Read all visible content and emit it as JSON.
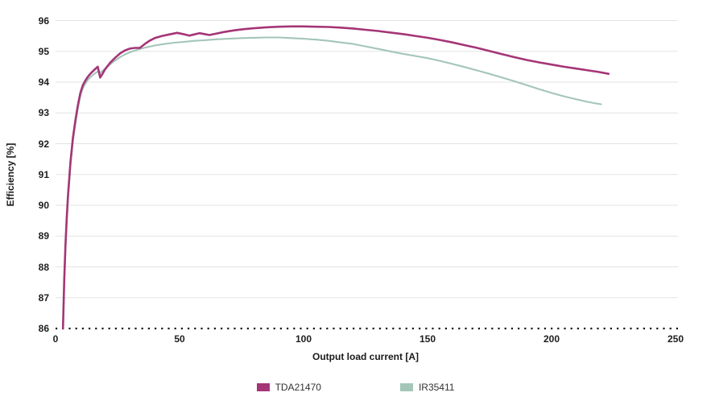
{
  "chart_data": {
    "type": "line",
    "title": "",
    "xlabel": "Output load current [A]",
    "ylabel": "Efficiency [%]",
    "xlim": [
      0,
      250
    ],
    "ylim": [
      86,
      96
    ],
    "xticks": [
      0,
      50,
      100,
      150,
      200,
      250
    ],
    "yticks": [
      86,
      87,
      88,
      89,
      90,
      91,
      92,
      93,
      94,
      95,
      96
    ],
    "grid": "horizontal-light-gray",
    "baseline_style": "dotted-black-at-86",
    "legend_position": "bottom-center",
    "series": [
      {
        "name": "TDA21470",
        "color": "#A53577",
        "points": [
          [
            3,
            86.0
          ],
          [
            3.5,
            87.6
          ],
          [
            4,
            88.7
          ],
          [
            4.5,
            89.6
          ],
          [
            5,
            90.3
          ],
          [
            6,
            91.4
          ],
          [
            7,
            92.2
          ],
          [
            8,
            92.75
          ],
          [
            9,
            93.25
          ],
          [
            10,
            93.65
          ],
          [
            11,
            93.9
          ],
          [
            12,
            94.05
          ],
          [
            13,
            94.17
          ],
          [
            14,
            94.27
          ],
          [
            15,
            94.35
          ],
          [
            16,
            94.43
          ],
          [
            17,
            94.5
          ],
          [
            18,
            94.15
          ],
          [
            19,
            94.28
          ],
          [
            20,
            94.42
          ],
          [
            22,
            94.63
          ],
          [
            24,
            94.79
          ],
          [
            26,
            94.93
          ],
          [
            28,
            95.03
          ],
          [
            30,
            95.09
          ],
          [
            32,
            95.11
          ],
          [
            34,
            95.11
          ],
          [
            36,
            95.24
          ],
          [
            38,
            95.35
          ],
          [
            40,
            95.43
          ],
          [
            43,
            95.5
          ],
          [
            46,
            95.55
          ],
          [
            49,
            95.6
          ],
          [
            52,
            95.55
          ],
          [
            54,
            95.51
          ],
          [
            56,
            95.55
          ],
          [
            58,
            95.59
          ],
          [
            60,
            95.56
          ],
          [
            62,
            95.53
          ],
          [
            65,
            95.58
          ],
          [
            68,
            95.63
          ],
          [
            72,
            95.68
          ],
          [
            76,
            95.72
          ],
          [
            80,
            95.75
          ],
          [
            85,
            95.78
          ],
          [
            90,
            95.8
          ],
          [
            95,
            95.81
          ],
          [
            100,
            95.81
          ],
          [
            105,
            95.8
          ],
          [
            110,
            95.79
          ],
          [
            115,
            95.77
          ],
          [
            120,
            95.74
          ],
          [
            125,
            95.7
          ],
          [
            130,
            95.66
          ],
          [
            135,
            95.61
          ],
          [
            140,
            95.56
          ],
          [
            145,
            95.5
          ],
          [
            150,
            95.44
          ],
          [
            155,
            95.37
          ],
          [
            160,
            95.29
          ],
          [
            165,
            95.2
          ],
          [
            170,
            95.11
          ],
          [
            175,
            95.01
          ],
          [
            180,
            94.91
          ],
          [
            185,
            94.81
          ],
          [
            190,
            94.72
          ],
          [
            195,
            94.64
          ],
          [
            200,
            94.57
          ],
          [
            205,
            94.5
          ],
          [
            210,
            94.44
          ],
          [
            215,
            94.38
          ],
          [
            219,
            94.33
          ],
          [
            223,
            94.27
          ]
        ]
      },
      {
        "name": "IR35411",
        "color": "#A3C6B8",
        "points": [
          [
            3,
            86.0
          ],
          [
            3.5,
            87.5
          ],
          [
            4,
            88.6
          ],
          [
            4.5,
            89.5
          ],
          [
            5,
            90.2
          ],
          [
            6,
            91.3
          ],
          [
            7,
            92.1
          ],
          [
            8,
            92.65
          ],
          [
            9,
            93.15
          ],
          [
            10,
            93.55
          ],
          [
            11,
            93.8
          ],
          [
            12,
            93.95
          ],
          [
            13,
            94.07
          ],
          [
            14,
            94.16
          ],
          [
            15,
            94.23
          ],
          [
            16,
            94.29
          ],
          [
            17,
            94.34
          ],
          [
            18,
            94.3
          ],
          [
            19,
            94.37
          ],
          [
            20,
            94.44
          ],
          [
            22,
            94.58
          ],
          [
            24,
            94.7
          ],
          [
            26,
            94.81
          ],
          [
            28,
            94.9
          ],
          [
            30,
            94.97
          ],
          [
            33,
            95.05
          ],
          [
            36,
            95.12
          ],
          [
            40,
            95.19
          ],
          [
            44,
            95.24
          ],
          [
            48,
            95.28
          ],
          [
            52,
            95.31
          ],
          [
            56,
            95.34
          ],
          [
            60,
            95.36
          ],
          [
            65,
            95.39
          ],
          [
            70,
            95.41
          ],
          [
            75,
            95.43
          ],
          [
            80,
            95.44
          ],
          [
            85,
            95.45
          ],
          [
            90,
            95.45
          ],
          [
            95,
            95.43
          ],
          [
            100,
            95.41
          ],
          [
            105,
            95.38
          ],
          [
            110,
            95.34
          ],
          [
            115,
            95.29
          ],
          [
            120,
            95.24
          ],
          [
            125,
            95.16
          ],
          [
            130,
            95.08
          ],
          [
            135,
            95.0
          ],
          [
            140,
            94.92
          ],
          [
            145,
            94.85
          ],
          [
            150,
            94.78
          ],
          [
            155,
            94.69
          ],
          [
            160,
            94.59
          ],
          [
            165,
            94.49
          ],
          [
            170,
            94.38
          ],
          [
            175,
            94.27
          ],
          [
            180,
            94.15
          ],
          [
            185,
            94.03
          ],
          [
            190,
            93.9
          ],
          [
            195,
            93.77
          ],
          [
            200,
            93.65
          ],
          [
            205,
            93.54
          ],
          [
            210,
            93.44
          ],
          [
            214,
            93.37
          ],
          [
            217,
            93.32
          ],
          [
            220,
            93.28
          ]
        ]
      }
    ]
  },
  "colors": {
    "gridline": "#e3e3e3",
    "baseline": "#1a1a1a",
    "tick_text": "#1d1d1d"
  }
}
